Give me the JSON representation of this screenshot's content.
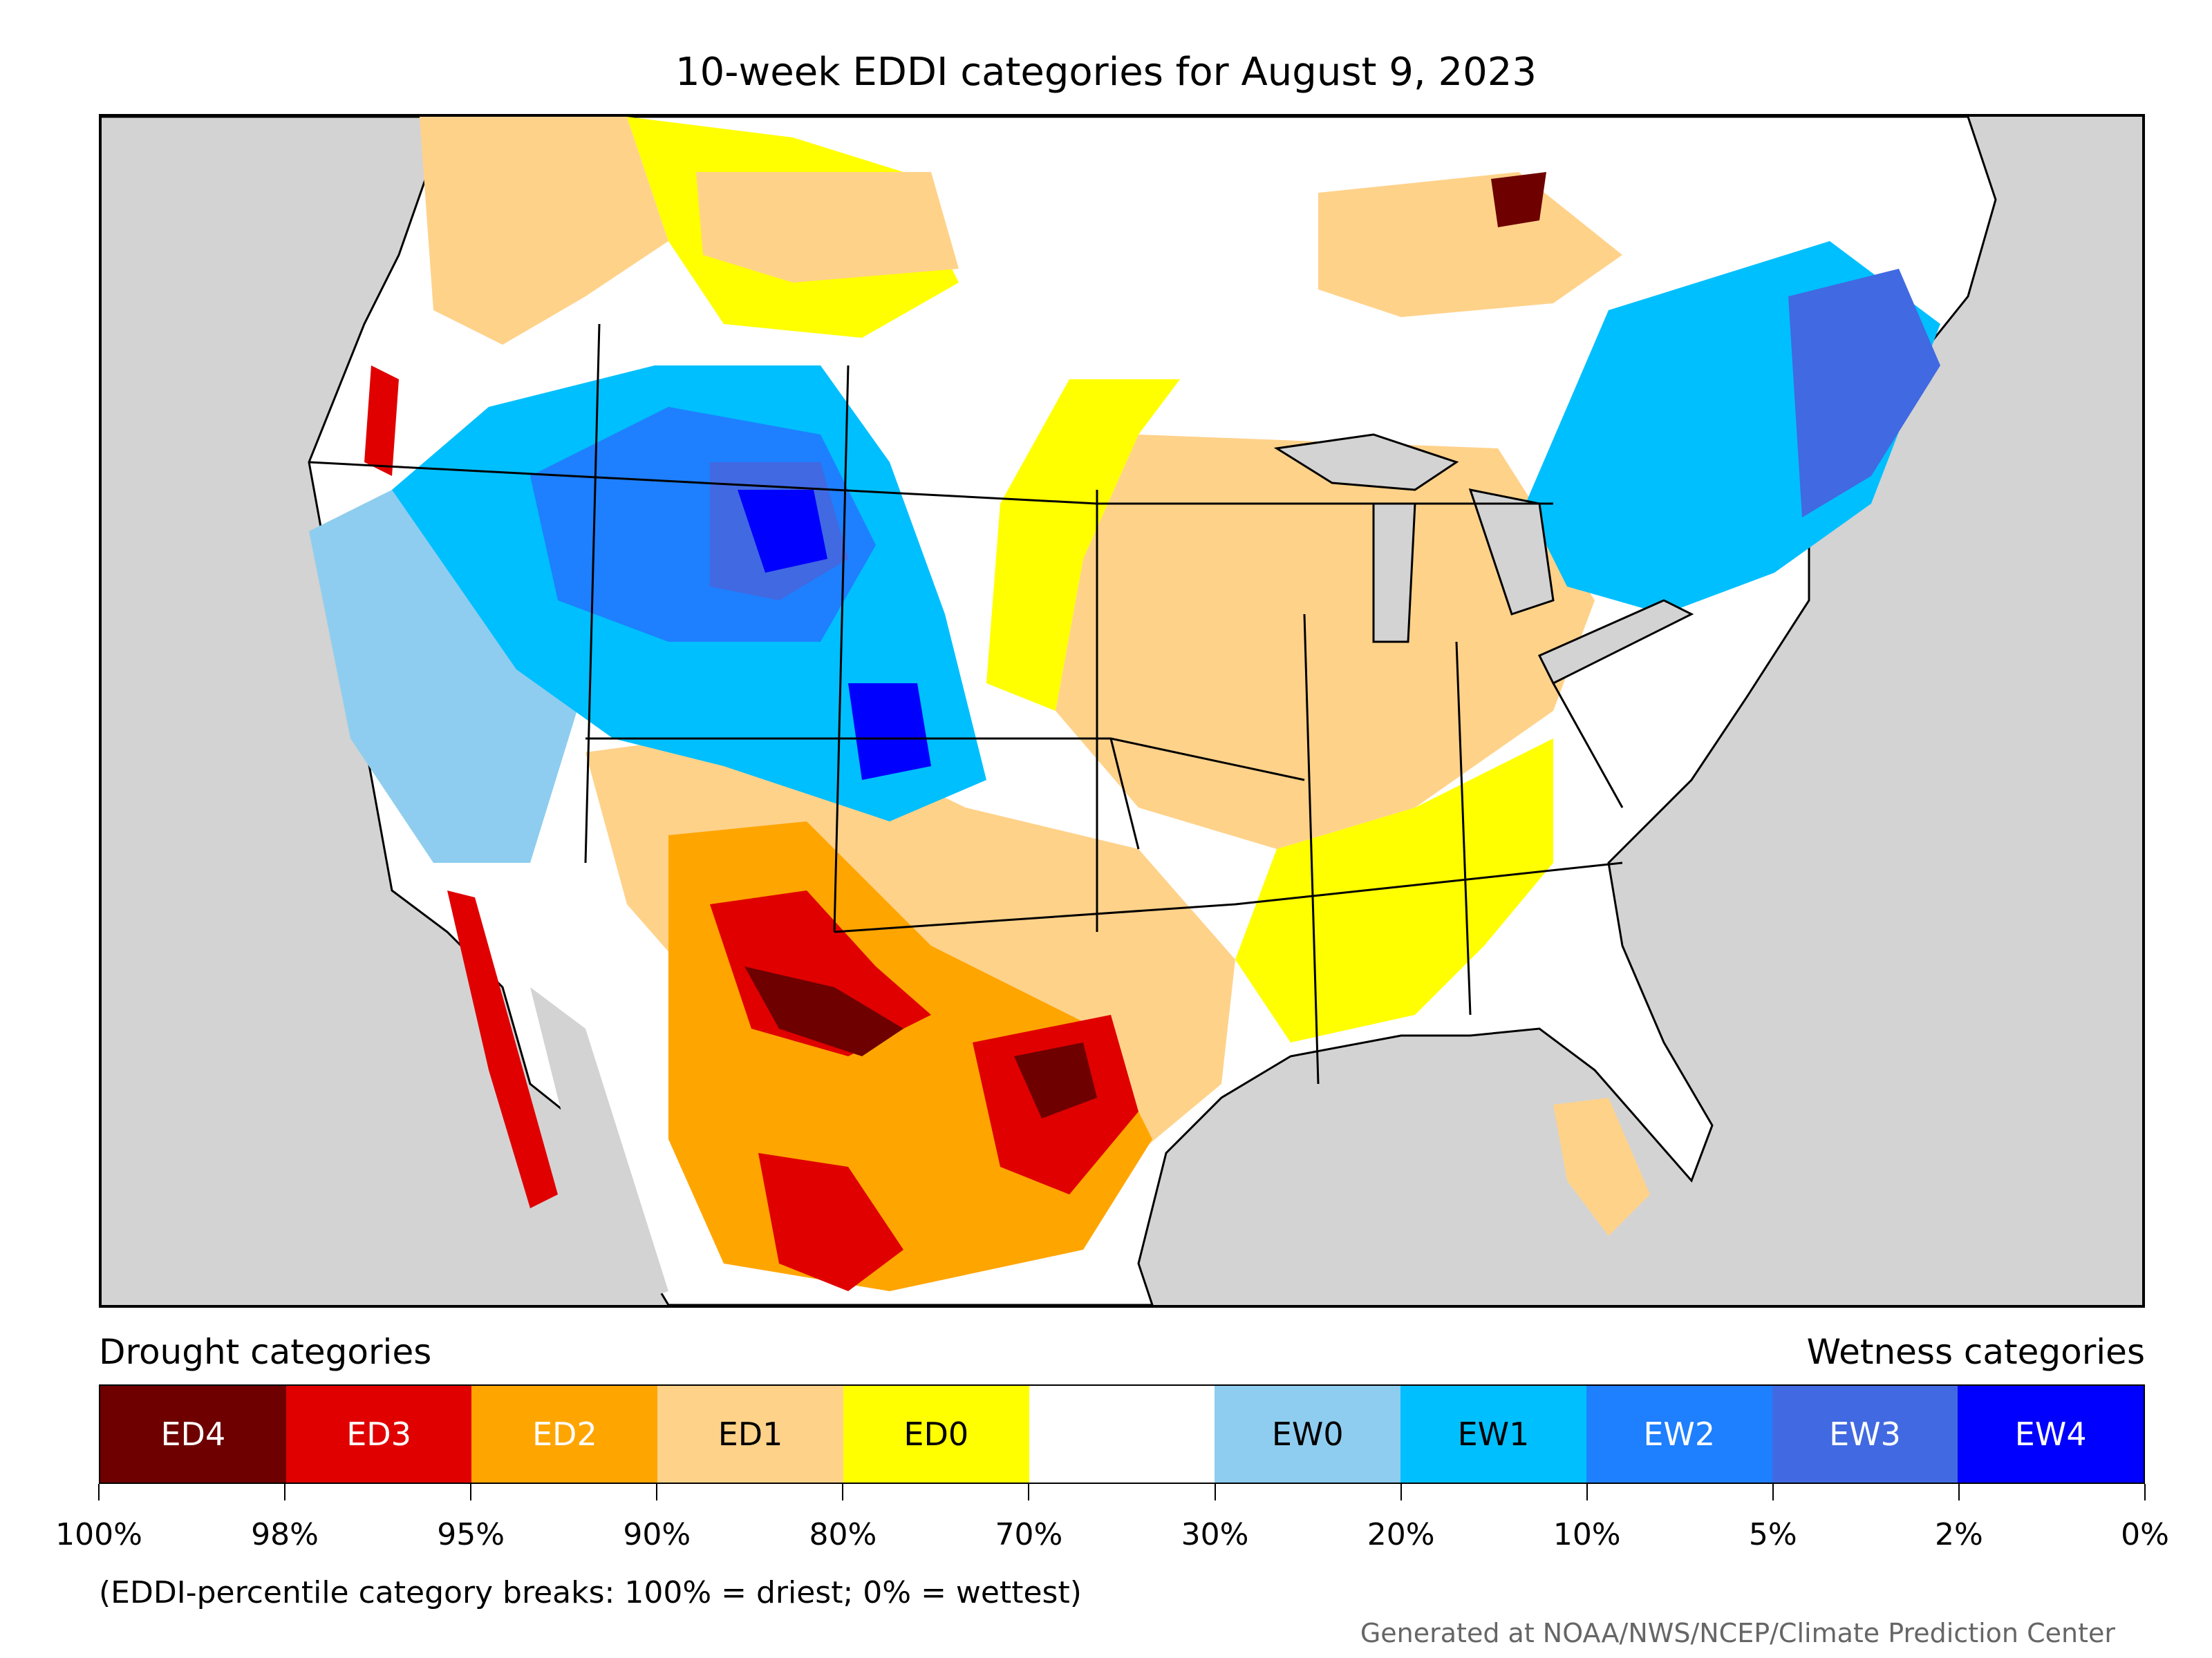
{
  "title": "10-week EDDI categories for August 9, 2023",
  "legend": {
    "drought_heading": "Drought categories",
    "wetness_heading": "Wetness categories",
    "categories": [
      {
        "label": "ED4",
        "color": "#6e0000",
        "text_color": "#ffffff"
      },
      {
        "label": "ED3",
        "color": "#e00000",
        "text_color": "#ffffff"
      },
      {
        "label": "ED2",
        "color": "#ffa500",
        "text_color": "#ffffff"
      },
      {
        "label": "ED1",
        "color": "#ffd28a",
        "text_color": "#000000"
      },
      {
        "label": "ED0",
        "color": "#ffff00",
        "text_color": "#000000"
      },
      {
        "label": "",
        "color": "#ffffff",
        "text_color": "#000000"
      },
      {
        "label": "EW0",
        "color": "#8ecdef",
        "text_color": "#000000"
      },
      {
        "label": "EW1",
        "color": "#00bfff",
        "text_color": "#000000"
      },
      {
        "label": "EW2",
        "color": "#1e7fff",
        "text_color": "#ffffff"
      },
      {
        "label": "EW3",
        "color": "#4169e1",
        "text_color": "#ffffff"
      },
      {
        "label": "EW4",
        "color": "#0000ff",
        "text_color": "#ffffff"
      }
    ],
    "breaks": [
      "100%",
      "98%",
      "95%",
      "90%",
      "80%",
      "70%",
      "30%",
      "20%",
      "10%",
      "5%",
      "2%",
      "0%"
    ]
  },
  "note": "(EDDI-percentile category breaks: 100% = driest; 0% = wettest)",
  "credit": "Generated at NOAA/NWS/NCEP/Climate Prediction Center",
  "colors": {
    "ocean": "#d3d3d3",
    "land": "#ffffff",
    "border": "#000000"
  }
}
